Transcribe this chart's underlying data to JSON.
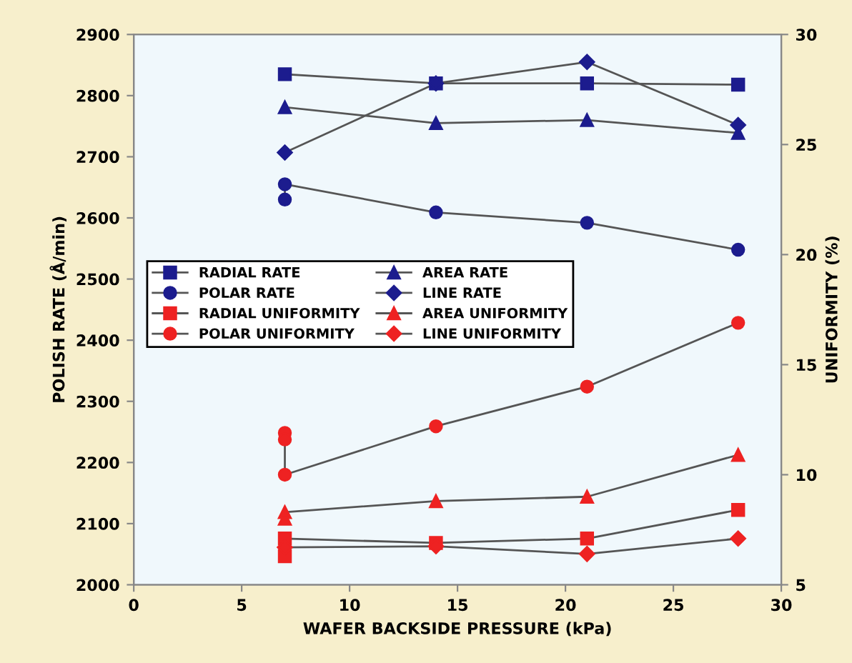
{
  "chart_data": {
    "type": "line",
    "xlabel": "WAFER BACKSIDE PRESSURE (kPa)",
    "ylabel": "POLISH RATE (Å/min)",
    "y2label": "UNIFORMITY (%)",
    "xlim": [
      0,
      30
    ],
    "xticks": [
      0,
      5,
      10,
      15,
      20,
      25,
      30
    ],
    "ylim": [
      2000,
      2900
    ],
    "yticks": [
      2000,
      2100,
      2200,
      2300,
      2400,
      2500,
      2600,
      2700,
      2800,
      2900
    ],
    "y2lim": [
      5,
      30
    ],
    "y2ticks": [
      5,
      10,
      15,
      20,
      25,
      30
    ],
    "grid": false,
    "legend": "left",
    "line_style": "solid",
    "series": [
      {
        "name": "RADIAL RATE",
        "color": "#1c1c8e",
        "marker": "square",
        "x": [
          7,
          14,
          21,
          28
        ],
        "values": [
          2835,
          2820,
          2820,
          2818
        ]
      },
      {
        "name": "POLAR RATE",
        "color": "#1c1c8e",
        "marker": "circle",
        "x": [
          7,
          7,
          14,
          21,
          28
        ],
        "values": [
          2630,
          2655,
          2609,
          2592,
          2548
        ]
      },
      {
        "name": "RADIAL UNIFORMITY",
        "color": "#ee2222",
        "marker": "square",
        "axis": "y2",
        "x": [
          7,
          7,
          14,
          21,
          28
        ],
        "values": [
          6.3,
          7.1,
          6.9,
          7.1,
          8.4
        ]
      },
      {
        "name": "POLAR UNIFORMITY",
        "color": "#ee2222",
        "marker": "circle",
        "axis": "y2",
        "x": [
          7,
          7,
          7,
          14,
          21,
          28
        ],
        "values": [
          11.9,
          11.6,
          10.0,
          12.2,
          14.0,
          16.9
        ]
      },
      {
        "name": "AREA RATE",
        "color": "#1c1c8e",
        "marker": "triangle",
        "x": [
          7,
          14,
          21,
          28
        ],
        "values": [
          2781,
          2755,
          2760,
          2739
        ]
      },
      {
        "name": "LINE RATE",
        "color": "#1c1c8e",
        "marker": "diamond",
        "x": [
          7,
          14,
          21,
          28
        ],
        "values": [
          2707,
          2820,
          2855,
          2752
        ]
      },
      {
        "name": "AREA UNIFORMITY",
        "color": "#ee2222",
        "marker": "triangle",
        "axis": "y2",
        "x": [
          7,
          7,
          14,
          21,
          28
        ],
        "values": [
          8.0,
          8.3,
          8.8,
          9.0,
          10.9
        ]
      },
      {
        "name": "LINE UNIFORMITY",
        "color": "#ee2222",
        "marker": "diamond",
        "axis": "y2",
        "x": [
          7,
          14,
          21,
          28
        ],
        "values": [
          6.7,
          6.75,
          6.4,
          7.1
        ]
      }
    ]
  }
}
